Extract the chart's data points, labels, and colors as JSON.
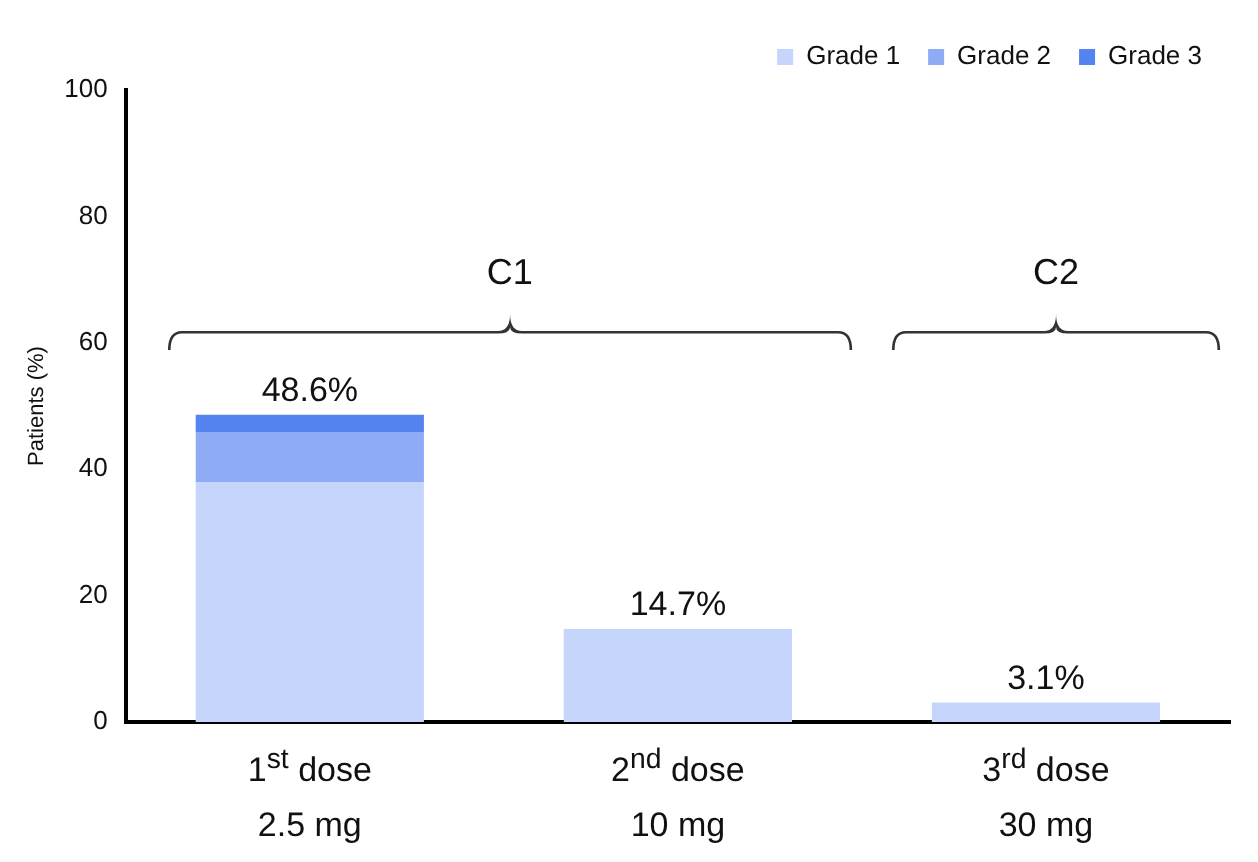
{
  "chart_data": {
    "type": "bar",
    "stacked": true,
    "categories": [
      "1$^{st}$ dose\n2.5 mg",
      "2$^{nd}$ dose\n10 mg",
      "3$^{rd}$ dose\n30 mg"
    ],
    "series": [
      {
        "name": "Grade 1",
        "color": "#c5d5fb",
        "values": [
          37.9,
          14.7,
          3.1
        ]
      },
      {
        "name": "Grade 2",
        "color": "#8fabf5",
        "values": [
          8.0,
          0,
          0
        ]
      },
      {
        "name": "Grade 3",
        "color": "#5583f0",
        "values": [
          2.7,
          0,
          0
        ]
      }
    ],
    "totals": [
      "48.6%",
      "14.7%",
      "3.1%"
    ],
    "ylabel": "Patients (%)",
    "ylim": [
      0,
      100
    ],
    "yticks": [
      0,
      20,
      40,
      60,
      80,
      100
    ],
    "grid": false,
    "legend": "top",
    "annotations": [
      "C1",
      "C2"
    ]
  }
}
